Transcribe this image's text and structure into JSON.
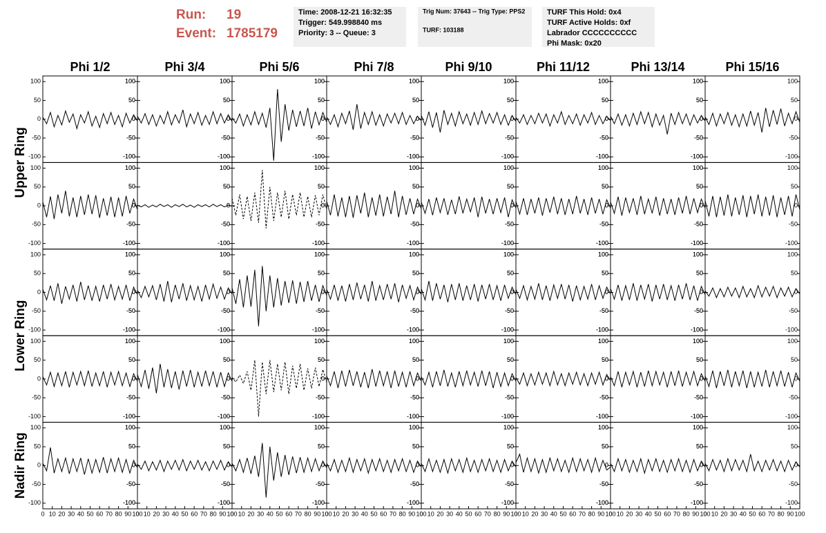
{
  "header": {
    "run_label": "Run:",
    "run": "19",
    "event_label": "Event:",
    "event": "1785179",
    "boxes": [
      [
        "Time: 2008-12-21 16:32:35",
        "Trigger: 549.998840 ms",
        "Priority: 3 -- Queue: 3"
      ],
      [
        "Trig Num: 37643 -- Trig Type: PPS2",
        "TURF: 103188"
      ],
      [
        "TURF This Hold: 0x4",
        "TURF Active Holds: 0xf",
        "Labrador CCCCCCCCCC",
        "Phi Mask: 0x20"
      ]
    ]
  },
  "chart_data": {
    "type": "line",
    "columns": [
      "Phi 1/2",
      "Phi 3/4",
      "Phi 5/6",
      "Phi 7/8",
      "Phi 9/10",
      "Phi 11/12",
      "Phi 13/14",
      "Phi 15/16"
    ],
    "rings": [
      "Upper Ring",
      "Lower Ring",
      "Nadir Ring"
    ],
    "xlim": [
      0,
      100
    ],
    "xticks": [
      0,
      10,
      20,
      30,
      40,
      50,
      60,
      70,
      80,
      90,
      100
    ],
    "ylim": [
      -115,
      115
    ],
    "yticks": [
      -100,
      -50,
      0,
      50,
      100
    ],
    "color": "#000000",
    "dashed_panels": [
      [
        1,
        2
      ],
      [
        3,
        2
      ]
    ],
    "x": [
      0,
      4,
      8,
      12,
      16,
      20,
      24,
      28,
      32,
      36,
      40,
      44,
      48,
      52,
      56,
      60,
      64,
      68,
      72,
      76,
      80,
      84,
      88,
      92,
      96,
      100
    ],
    "panels": [
      [
        [
          5,
          -12,
          18,
          -20,
          10,
          -15,
          22,
          -8,
          14,
          -25,
          12,
          -10,
          20,
          -18,
          8,
          -22,
          15,
          -12,
          18,
          -14,
          10,
          -20,
          16,
          -10,
          12,
          -5
        ],
        [
          8,
          -10,
          15,
          -14,
          12,
          -18,
          10,
          -12,
          20,
          -15,
          12,
          -10,
          25,
          -20,
          14,
          -12,
          18,
          -16,
          10,
          -14,
          20,
          -12,
          15,
          -10,
          12,
          -6
        ],
        [
          4,
          -10,
          14,
          -18,
          12,
          -15,
          20,
          -14,
          16,
          -22,
          30,
          -110,
          80,
          -60,
          40,
          -30,
          25,
          -20,
          22,
          -18,
          30,
          -25,
          20,
          -15,
          18,
          -8
        ],
        [
          6,
          -14,
          12,
          -20,
          16,
          -12,
          22,
          -28,
          40,
          -25,
          18,
          -14,
          20,
          -16,
          12,
          -18,
          14,
          -10,
          16,
          -12,
          18,
          -14,
          10,
          -12,
          8,
          -4
        ],
        [
          10,
          -16,
          20,
          -22,
          18,
          -35,
          24,
          -14,
          16,
          -18,
          20,
          -12,
          14,
          -16,
          18,
          -14,
          22,
          -12,
          15,
          -10,
          18,
          -14,
          12,
          -16,
          10,
          -6
        ],
        [
          5,
          -10,
          12,
          -14,
          10,
          -12,
          16,
          -10,
          14,
          -18,
          12,
          -10,
          20,
          -14,
          10,
          -12,
          14,
          -16,
          12,
          -10,
          18,
          -14,
          10,
          -12,
          8,
          -4
        ],
        [
          8,
          -12,
          14,
          -16,
          12,
          -18,
          16,
          -14,
          20,
          -12,
          18,
          -20,
          14,
          -16,
          10,
          -40,
          16,
          -14,
          18,
          -12,
          14,
          -16,
          12,
          -10,
          10,
          -5
        ],
        [
          6,
          -14,
          16,
          -18,
          14,
          -12,
          18,
          -16,
          12,
          -20,
          14,
          -18,
          22,
          -16,
          18,
          -35,
          30,
          -20,
          24,
          -14,
          28,
          -18,
          16,
          -12,
          20,
          -8
        ]
      ],
      [
        [
          10,
          -30,
          25,
          -35,
          30,
          -20,
          40,
          -28,
          22,
          -30,
          26,
          -24,
          30,
          -22,
          28,
          -32,
          20,
          -26,
          24,
          -30,
          22,
          -28,
          26,
          -20,
          18,
          -10
        ],
        [
          2,
          -3,
          3,
          -4,
          2,
          -3,
          4,
          -2,
          3,
          -4,
          3,
          -2,
          4,
          -3,
          2,
          -4,
          3,
          -2,
          3,
          -3,
          4,
          -2,
          3,
          -3,
          2,
          -1
        ],
        [
          20,
          -25,
          30,
          -35,
          25,
          -40,
          35,
          -45,
          95,
          -60,
          50,
          -40,
          35,
          -30,
          40,
          -35,
          30,
          -25,
          35,
          -30,
          25,
          -30,
          28,
          -25,
          30,
          -10
        ],
        [
          12,
          -25,
          30,
          -28,
          22,
          -30,
          26,
          -32,
          28,
          -20,
          35,
          -30,
          22,
          -26,
          30,
          -28,
          24,
          -22,
          40,
          -30,
          26,
          -24,
          20,
          -22,
          18,
          -8
        ],
        [
          10,
          -20,
          18,
          -25,
          22,
          -18,
          20,
          -24,
          16,
          -22,
          25,
          -20,
          18,
          -16,
          22,
          -30,
          24,
          -20,
          18,
          -22,
          20,
          -18,
          22,
          -30,
          16,
          -6
        ],
        [
          12,
          -22,
          20,
          -24,
          18,
          -20,
          22,
          -26,
          20,
          -18,
          24,
          -22,
          20,
          -24,
          18,
          -22,
          26,
          -20,
          18,
          -24,
          22,
          -20,
          18,
          -22,
          16,
          -6
        ],
        [
          10,
          -20,
          24,
          -26,
          22,
          -18,
          20,
          -24,
          26,
          -22,
          18,
          -20,
          24,
          -26,
          20,
          -22,
          18,
          -24,
          22,
          -20,
          26,
          -22,
          20,
          -18,
          18,
          -6
        ],
        [
          14,
          -28,
          26,
          -30,
          24,
          -26,
          30,
          -28,
          22,
          -24,
          28,
          -30,
          26,
          -22,
          30,
          -28,
          24,
          -26,
          28,
          -30,
          22,
          -24,
          26,
          -28,
          30,
          -10
        ]
      ],
      [
        [
          8,
          -20,
          18,
          -22,
          24,
          -30,
          16,
          -18,
          20,
          -24,
          28,
          -20,
          18,
          -22,
          16,
          -24,
          20,
          -18,
          22,
          -20,
          16,
          -18,
          20,
          -22,
          14,
          -6
        ],
        [
          6,
          -14,
          16,
          -12,
          18,
          -20,
          22,
          -24,
          30,
          -26,
          20,
          -18,
          24,
          -22,
          18,
          -20,
          16,
          -24,
          20,
          -18,
          22,
          -16,
          14,
          -18,
          12,
          -4
        ],
        [
          12,
          -30,
          35,
          -40,
          45,
          -38,
          60,
          -90,
          70,
          -50,
          45,
          -40,
          38,
          -35,
          30,
          -28,
          32,
          -30,
          28,
          -25,
          30,
          -22,
          20,
          -25,
          18,
          -8
        ],
        [
          8,
          -18,
          20,
          -22,
          18,
          -24,
          22,
          -20,
          26,
          -18,
          20,
          -24,
          30,
          -22,
          18,
          -20,
          22,
          -18,
          24,
          -26,
          20,
          -16,
          18,
          -20,
          14,
          -6
        ],
        [
          10,
          -20,
          30,
          -22,
          24,
          -18,
          20,
          -26,
          22,
          -20,
          24,
          -22,
          18,
          -20,
          22,
          -24,
          20,
          -18,
          22,
          -20,
          18,
          -22,
          20,
          -16,
          14,
          -6
        ],
        [
          8,
          -16,
          18,
          -20,
          16,
          -18,
          24,
          -20,
          18,
          -22,
          20,
          -16,
          22,
          -18,
          20,
          -24,
          18,
          -20,
          16,
          -18,
          22,
          -20,
          18,
          -16,
          14,
          -4
        ],
        [
          10,
          -18,
          20,
          -22,
          18,
          -20,
          24,
          -22,
          20,
          -18,
          22,
          -24,
          20,
          -18,
          22,
          -20,
          18,
          -22,
          20,
          -18,
          24,
          -20,
          18,
          -22,
          16,
          -6
        ],
        [
          4,
          -10,
          12,
          -14,
          10,
          -12,
          14,
          -10,
          12,
          -14,
          16,
          -12,
          10,
          -14,
          18,
          -12,
          14,
          -10,
          16,
          -14,
          12,
          -10,
          14,
          -12,
          10,
          -4
        ]
      ],
      [
        [
          6,
          -16,
          18,
          -20,
          16,
          -18,
          20,
          -22,
          18,
          -16,
          20,
          -18,
          22,
          -20,
          16,
          -18,
          20,
          -22,
          18,
          -16,
          20,
          -18,
          16,
          -20,
          14,
          -6
        ],
        [
          12,
          -20,
          24,
          -26,
          30,
          -38,
          40,
          -22,
          26,
          -24,
          20,
          -28,
          22,
          -20,
          24,
          -22,
          18,
          -20,
          22,
          -18,
          20,
          -22,
          18,
          -20,
          16,
          -6
        ],
        [
          4,
          -8,
          10,
          -12,
          20,
          -30,
          50,
          -100,
          45,
          -40,
          50,
          -35,
          40,
          -30,
          45,
          -40,
          35,
          -25,
          40,
          -30,
          28,
          -25,
          30,
          -20,
          25,
          -8
        ],
        [
          8,
          -18,
          20,
          -24,
          22,
          -20,
          24,
          -18,
          20,
          -22,
          18,
          -24,
          26,
          -20,
          22,
          -18,
          20,
          -24,
          22,
          -20,
          18,
          -22,
          20,
          -18,
          16,
          -6
        ],
        [
          6,
          -16,
          18,
          -22,
          20,
          -18,
          24,
          -20,
          16,
          -22,
          20,
          -18,
          22,
          -16,
          18,
          -20,
          22,
          -18,
          20,
          -24,
          18,
          -20,
          16,
          -18,
          14,
          -6
        ],
        [
          4,
          -14,
          16,
          -18,
          14,
          -16,
          18,
          -14,
          16,
          -18,
          20,
          -16,
          14,
          -18,
          16,
          -14,
          18,
          -16,
          14,
          -18,
          16,
          -14,
          18,
          -16,
          12,
          -4
        ],
        [
          6,
          -18,
          20,
          -22,
          18,
          -16,
          20,
          -22,
          18,
          -20,
          22,
          -18,
          20,
          -16,
          18,
          -22,
          20,
          -18,
          22,
          -20,
          18,
          -16,
          20,
          -18,
          14,
          -6
        ],
        [
          8,
          -20,
          22,
          -24,
          20,
          -18,
          24,
          -22,
          20,
          -18,
          22,
          -24,
          20,
          -22,
          18,
          -20,
          24,
          -22,
          20,
          -18,
          22,
          -20,
          18,
          -22,
          16,
          -6
        ]
      ],
      [
        [
          6,
          -14,
          48,
          -20,
          18,
          -16,
          20,
          -22,
          18,
          -16,
          20,
          -24,
          18,
          -20,
          16,
          -18,
          22,
          -20,
          18,
          -16,
          20,
          -18,
          16,
          -20,
          14,
          -6
        ],
        [
          4,
          -10,
          12,
          -14,
          10,
          -12,
          14,
          -16,
          12,
          -10,
          14,
          -12,
          16,
          -14,
          12,
          -10,
          14,
          -12,
          10,
          -14,
          12,
          -10,
          14,
          -12,
          10,
          -4
        ],
        [
          6,
          -14,
          16,
          -18,
          20,
          -22,
          26,
          -30,
          60,
          -85,
          50,
          -40,
          35,
          -30,
          28,
          -25,
          24,
          -20,
          22,
          -18,
          20,
          -16,
          18,
          -14,
          12,
          -6
        ],
        [
          6,
          -14,
          16,
          -18,
          14,
          -16,
          20,
          -18,
          16,
          -14,
          18,
          -20,
          16,
          -14,
          18,
          -16,
          14,
          -18,
          16,
          -14,
          18,
          -16,
          14,
          -18,
          12,
          -4
        ],
        [
          6,
          -16,
          18,
          -16,
          14,
          -18,
          16,
          -20,
          18,
          -14,
          16,
          -18,
          20,
          -16,
          14,
          -18,
          16,
          -14,
          18,
          -16,
          14,
          -18,
          16,
          -14,
          12,
          -4
        ],
        [
          8,
          30,
          -18,
          20,
          -16,
          18,
          -20,
          16,
          -18,
          20,
          -14,
          18,
          -16,
          14,
          -18,
          20,
          -16,
          18,
          -14,
          16,
          -18,
          20,
          -16,
          14,
          -12,
          -4
        ],
        [
          6,
          -16,
          18,
          -14,
          16,
          -18,
          14,
          -16,
          18,
          -20,
          16,
          -14,
          18,
          -16,
          14,
          -18,
          16,
          -14,
          18,
          -16,
          14,
          -18,
          16,
          -14,
          12,
          -4
        ],
        [
          6,
          -14,
          16,
          -12,
          14,
          -16,
          18,
          -14,
          16,
          -12,
          14,
          -16,
          30,
          -14,
          12,
          -16,
          14,
          -12,
          16,
          -14,
          12,
          -16,
          14,
          -12,
          10,
          -4
        ]
      ]
    ]
  }
}
